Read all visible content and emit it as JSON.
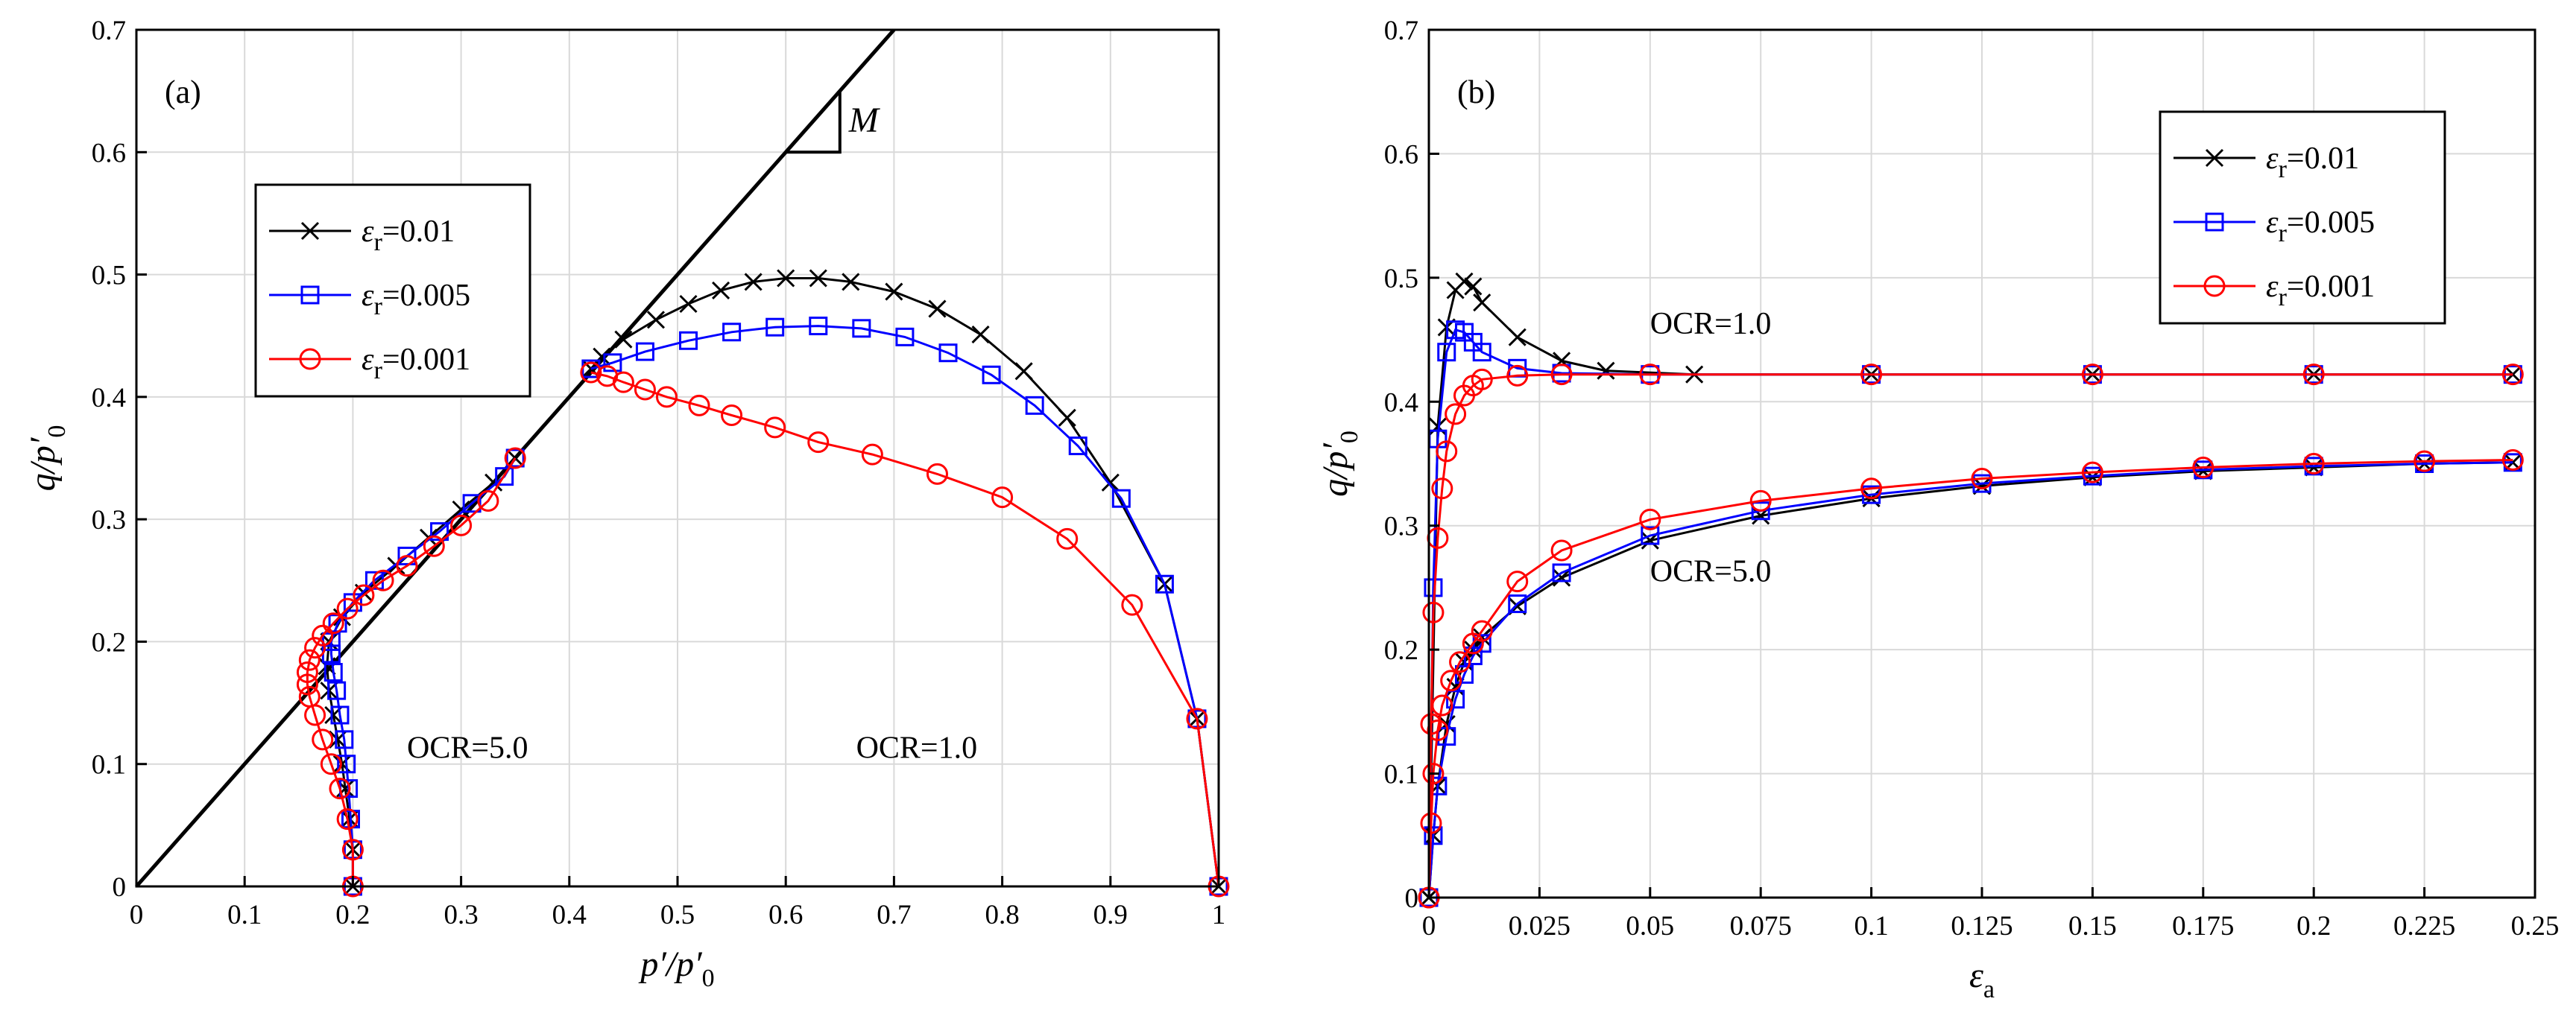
{
  "figure": {
    "description_free": true
  },
  "chart_data": [
    {
      "id": "a",
      "type": "line",
      "panel_label": "(a)",
      "xlabel": "p′/p′",
      "xlabel_sub": "0",
      "ylabel": "q/p′",
      "ylabel_sub": "0",
      "xlim": [
        0,
        1
      ],
      "ylim": [
        0,
        0.7
      ],
      "xticks": [
        0,
        0.1,
        0.2,
        0.3,
        0.4,
        0.5,
        0.6,
        0.7,
        0.8,
        0.9,
        1
      ],
      "xtick_labels": [
        "0",
        "0.1",
        "0.2",
        "0.3",
        "0.4",
        "0.5",
        "0.6",
        "0.7",
        "0.8",
        "0.9",
        "1"
      ],
      "yticks": [
        0,
        0.1,
        0.2,
        0.3,
        0.4,
        0.5,
        0.6,
        0.7
      ],
      "ytick_labels": [
        "0",
        "0.1",
        "0.2",
        "0.3",
        "0.4",
        "0.5",
        "0.6",
        "0.7"
      ],
      "grid": true,
      "legend_position": "upper-left",
      "critical_state_line": {
        "label": "M",
        "slope": 1.0
      },
      "annotations": [
        {
          "text": "OCR=5.0",
          "x": 0.25,
          "y": 0.105
        },
        {
          "text": "OCR=1.0",
          "x": 0.665,
          "y": 0.105
        }
      ],
      "series": [
        {
          "name": "ε=0.01",
          "eps_sub": "r",
          "eps_val": "=0.01",
          "color": "#000000",
          "marker": "x",
          "curves": [
            {
              "ocr": "1.0",
              "x": [
                1.0,
                0.98,
                0.95,
                0.9,
                0.86,
                0.82,
                0.78,
                0.74,
                0.7,
                0.66,
                0.63,
                0.6,
                0.57,
                0.54,
                0.51,
                0.48,
                0.45,
                0.43,
                0.42
              ],
              "y": [
                0.0,
                0.137,
                0.247,
                0.33,
                0.383,
                0.421,
                0.451,
                0.472,
                0.486,
                0.494,
                0.497,
                0.497,
                0.494,
                0.487,
                0.476,
                0.463,
                0.447,
                0.433,
                0.423
              ]
            },
            {
              "ocr": "5.0",
              "x": [
                0.2,
                0.2,
                0.197,
                0.193,
                0.19,
                0.186,
                0.182,
                0.178,
                0.176,
                0.178,
                0.19,
                0.21,
                0.24,
                0.27,
                0.3,
                0.33,
                0.35
              ],
              "y": [
                0.0,
                0.03,
                0.055,
                0.08,
                0.1,
                0.12,
                0.14,
                0.16,
                0.18,
                0.2,
                0.22,
                0.24,
                0.262,
                0.285,
                0.308,
                0.33,
                0.35
              ]
            }
          ]
        },
        {
          "name": "ε=0.005",
          "eps_sub": "r",
          "eps_val": "=0.005",
          "color": "#0000ff",
          "marker": "square",
          "curves": [
            {
              "ocr": "1.0",
              "x": [
                1.0,
                0.98,
                0.95,
                0.91,
                0.87,
                0.83,
                0.79,
                0.75,
                0.71,
                0.67,
                0.63,
                0.59,
                0.55,
                0.51,
                0.47,
                0.44,
                0.42
              ],
              "y": [
                0.0,
                0.137,
                0.247,
                0.317,
                0.36,
                0.393,
                0.418,
                0.436,
                0.449,
                0.456,
                0.458,
                0.457,
                0.453,
                0.446,
                0.437,
                0.428,
                0.423
              ]
            },
            {
              "ocr": "5.0",
              "x": [
                0.2,
                0.2,
                0.198,
                0.196,
                0.194,
                0.192,
                0.188,
                0.185,
                0.182,
                0.18,
                0.18,
                0.186,
                0.2,
                0.22,
                0.25,
                0.28,
                0.31,
                0.34,
                0.35
              ],
              "y": [
                0.0,
                0.03,
                0.055,
                0.08,
                0.1,
                0.12,
                0.14,
                0.16,
                0.175,
                0.19,
                0.2,
                0.215,
                0.232,
                0.25,
                0.27,
                0.29,
                0.313,
                0.335,
                0.35
              ]
            }
          ]
        },
        {
          "name": "ε=0.001",
          "eps_sub": "r",
          "eps_val": "=0.001",
          "color": "#ff0000",
          "marker": "circle",
          "curves": [
            {
              "ocr": "1.0",
              "x": [
                1.0,
                0.98,
                0.92,
                0.86,
                0.8,
                0.74,
                0.68,
                0.63,
                0.59,
                0.55,
                0.52,
                0.49,
                0.47,
                0.45,
                0.435,
                0.42
              ],
              "y": [
                0.0,
                0.137,
                0.23,
                0.284,
                0.318,
                0.337,
                0.353,
                0.363,
                0.375,
                0.385,
                0.393,
                0.4,
                0.406,
                0.412,
                0.417,
                0.42
              ]
            },
            {
              "ocr": "5.0",
              "x": [
                0.2,
                0.2,
                0.195,
                0.188,
                0.18,
                0.172,
                0.165,
                0.16,
                0.158,
                0.158,
                0.16,
                0.165,
                0.172,
                0.182,
                0.195,
                0.21,
                0.228,
                0.25,
                0.275,
                0.3,
                0.325,
                0.35
              ],
              "y": [
                0.0,
                0.03,
                0.055,
                0.08,
                0.1,
                0.12,
                0.14,
                0.155,
                0.165,
                0.175,
                0.185,
                0.195,
                0.205,
                0.215,
                0.227,
                0.238,
                0.25,
                0.262,
                0.278,
                0.295,
                0.315,
                0.35
              ]
            }
          ]
        }
      ]
    },
    {
      "id": "b",
      "type": "line",
      "panel_label": "(b)",
      "xlabel": "ε",
      "xlabel_sub": "a",
      "ylabel": "q/p′",
      "ylabel_sub": "0",
      "xlim": [
        0,
        0.25
      ],
      "ylim": [
        0,
        0.7
      ],
      "xticks": [
        0,
        0.025,
        0.05,
        0.075,
        0.1,
        0.125,
        0.15,
        0.175,
        0.2,
        0.225,
        0.25
      ],
      "xtick_labels": [
        "0",
        "0.025",
        "0.05",
        "0.075",
        "0.1",
        "0.125",
        "0.15",
        "0.175",
        "0.2",
        "0.225",
        "0.25"
      ],
      "yticks": [
        0,
        0.1,
        0.2,
        0.3,
        0.4,
        0.5,
        0.6,
        0.7
      ],
      "ytick_labels": [
        "0",
        "0.1",
        "0.2",
        "0.3",
        "0.4",
        "0.5",
        "0.6",
        "0.7"
      ],
      "grid": true,
      "legend_position": "upper-right",
      "annotations": [
        {
          "text": "OCR=1.0",
          "x": 0.05,
          "y": 0.455
        },
        {
          "text": "OCR=5.0",
          "x": 0.05,
          "y": 0.255
        }
      ],
      "series": [
        {
          "name": "ε=0.01",
          "eps_sub": "r",
          "eps_val": "=0.01",
          "color": "#000000",
          "marker": "x",
          "curves": [
            {
              "ocr": "1.0",
              "x": [
                0,
                0.002,
                0.004,
                0.006,
                0.008,
                0.01,
                0.012,
                0.02,
                0.03,
                0.04,
                0.06,
                0.1,
                0.15,
                0.2,
                0.245
              ],
              "y": [
                0.0,
                0.38,
                0.46,
                0.49,
                0.497,
                0.493,
                0.48,
                0.452,
                0.433,
                0.425,
                0.422,
                0.422,
                0.422,
                0.422,
                0.422
              ]
            },
            {
              "ocr": "5.0",
              "x": [
                0,
                0.001,
                0.002,
                0.004,
                0.006,
                0.008,
                0.01,
                0.012,
                0.02,
                0.03,
                0.05,
                0.075,
                0.1,
                0.125,
                0.15,
                0.175,
                0.2,
                0.225,
                0.245
              ],
              "y": [
                0.0,
                0.05,
                0.09,
                0.14,
                0.17,
                0.19,
                0.2,
                0.21,
                0.235,
                0.258,
                0.288,
                0.308,
                0.322,
                0.332,
                0.339,
                0.344,
                0.347,
                0.35,
                0.351
              ]
            }
          ]
        },
        {
          "name": "ε=0.005",
          "eps_sub": "r",
          "eps_val": "=0.005",
          "color": "#0000ff",
          "marker": "square",
          "curves": [
            {
              "ocr": "1.0",
              "x": [
                0,
                0.001,
                0.002,
                0.004,
                0.006,
                0.008,
                0.01,
                0.012,
                0.02,
                0.03,
                0.05,
                0.1,
                0.15,
                0.2,
                0.245
              ],
              "y": [
                0.0,
                0.25,
                0.37,
                0.44,
                0.458,
                0.456,
                0.448,
                0.44,
                0.427,
                0.423,
                0.422,
                0.422,
                0.422,
                0.422,
                0.422
              ]
            },
            {
              "ocr": "5.0",
              "x": [
                0,
                0.001,
                0.002,
                0.004,
                0.006,
                0.008,
                0.01,
                0.012,
                0.02,
                0.03,
                0.05,
                0.075,
                0.1,
                0.125,
                0.15,
                0.175,
                0.2,
                0.225,
                0.245
              ],
              "y": [
                0.0,
                0.05,
                0.09,
                0.13,
                0.16,
                0.18,
                0.195,
                0.205,
                0.237,
                0.262,
                0.292,
                0.312,
                0.325,
                0.334,
                0.34,
                0.345,
                0.348,
                0.35,
                0.351
              ]
            }
          ]
        },
        {
          "name": "ε=0.001",
          "eps_sub": "r",
          "eps_val": "=0.001",
          "color": "#ff0000",
          "marker": "circle",
          "curves": [
            {
              "ocr": "1.0",
              "x": [
                0,
                0.0005,
                0.001,
                0.002,
                0.003,
                0.004,
                0.006,
                0.008,
                0.01,
                0.012,
                0.02,
                0.03,
                0.05,
                0.1,
                0.15,
                0.2,
                0.245
              ],
              "y": [
                0.0,
                0.14,
                0.23,
                0.29,
                0.33,
                0.36,
                0.39,
                0.405,
                0.413,
                0.418,
                0.421,
                0.422,
                0.422,
                0.422,
                0.422,
                0.422,
                0.422
              ]
            },
            {
              "ocr": "5.0",
              "x": [
                0,
                0.0005,
                0.001,
                0.002,
                0.003,
                0.005,
                0.007,
                0.01,
                0.012,
                0.02,
                0.03,
                0.05,
                0.075,
                0.1,
                0.125,
                0.15,
                0.175,
                0.2,
                0.225,
                0.245
              ],
              "y": [
                0.0,
                0.06,
                0.1,
                0.135,
                0.155,
                0.175,
                0.19,
                0.205,
                0.215,
                0.255,
                0.28,
                0.305,
                0.32,
                0.33,
                0.338,
                0.343,
                0.347,
                0.35,
                0.352,
                0.353
              ]
            }
          ]
        }
      ]
    }
  ]
}
